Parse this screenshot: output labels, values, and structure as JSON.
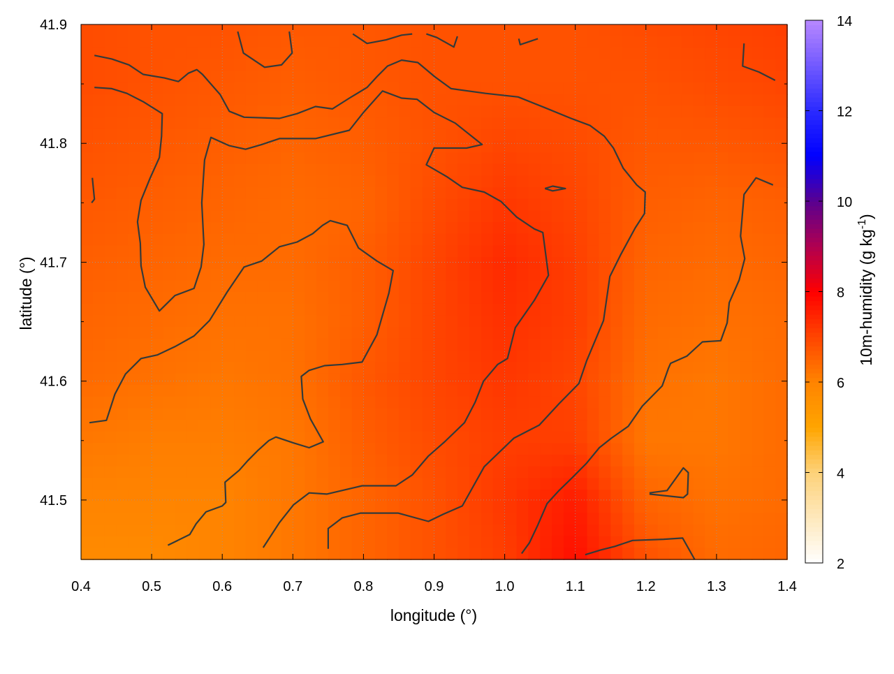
{
  "chart_data": {
    "type": "heatmap",
    "title": "",
    "xlabel": "longitude (°)",
    "ylabel": "latitude (°)",
    "xlim": [
      0.4,
      1.4
    ],
    "ylim": [
      41.45,
      41.9
    ],
    "xticks": [
      "0.4",
      "0.5",
      "0.6",
      "0.7",
      "0.8",
      "0.9",
      "1.0",
      "1.1",
      "1.2",
      "1.3",
      "1.4"
    ],
    "yticks": [
      "41.5",
      "41.6",
      "41.7",
      "41.8",
      "41.9"
    ],
    "grid": true,
    "colorbar": {
      "label_main": "10m-humidity (g kg",
      "label_sup": "-1",
      "label_end": ")",
      "range": [
        2,
        14
      ],
      "ticks": [
        "2",
        "4",
        "6",
        "8",
        "10",
        "12",
        "14"
      ],
      "colormap": [
        [
          2,
          "#ffffff"
        ],
        [
          4,
          "#fdd27a"
        ],
        [
          5,
          "#ffa500"
        ],
        [
          6,
          "#ff8400"
        ],
        [
          7,
          "#ff4500"
        ],
        [
          8,
          "#ff0000"
        ],
        [
          9,
          "#b00050"
        ],
        [
          10,
          "#5a0090"
        ],
        [
          11,
          "#0000ff"
        ],
        [
          12,
          "#2a2aff"
        ],
        [
          14,
          "#b888ff"
        ]
      ]
    },
    "grid_lon": [
      0.4,
      0.5,
      0.6,
      0.7,
      0.8,
      0.9,
      1.0,
      1.1,
      1.2,
      1.3,
      1.4
    ],
    "grid_lat": [
      41.9,
      41.85,
      41.8,
      41.75,
      41.7,
      41.65,
      41.6,
      41.55,
      41.5,
      41.45
    ],
    "values": [
      [
        6.9,
        6.8,
        6.8,
        6.7,
        6.7,
        6.8,
        6.8,
        6.8,
        6.9,
        7.0,
        7.1
      ],
      [
        6.9,
        6.8,
        6.7,
        6.6,
        6.7,
        6.8,
        6.8,
        6.8,
        6.8,
        6.9,
        7.0
      ],
      [
        6.8,
        6.7,
        6.6,
        6.5,
        6.6,
        6.8,
        7.0,
        6.9,
        6.7,
        6.7,
        6.8
      ],
      [
        6.7,
        6.6,
        6.5,
        6.4,
        6.5,
        6.9,
        7.2,
        7.0,
        6.6,
        6.5,
        6.6
      ],
      [
        6.6,
        6.5,
        6.4,
        6.4,
        6.6,
        7.0,
        7.4,
        7.1,
        6.5,
        6.4,
        6.5
      ],
      [
        6.5,
        6.4,
        6.3,
        6.3,
        6.6,
        7.0,
        7.3,
        7.1,
        6.4,
        6.3,
        6.4
      ],
      [
        6.4,
        6.3,
        6.2,
        6.3,
        6.7,
        7.0,
        7.2,
        7.0,
        6.3,
        6.2,
        6.4
      ],
      [
        6.2,
        6.1,
        6.1,
        6.2,
        6.6,
        6.9,
        7.1,
        7.1,
        6.2,
        6.2,
        6.4
      ],
      [
        6.0,
        6.0,
        6.0,
        6.2,
        6.5,
        6.8,
        7.2,
        7.6,
        6.5,
        6.3,
        6.4
      ],
      [
        5.8,
        5.8,
        6.0,
        6.2,
        6.5,
        6.8,
        7.1,
        7.8,
        6.8,
        6.4,
        6.5
      ]
    ],
    "contours": [
      [
        [
          0.419,
          41.874
        ],
        [
          0.4435,
          41.871
        ],
        [
          0.468,
          41.866
        ],
        [
          0.488,
          41.858
        ],
        [
          0.518,
          41.855
        ],
        [
          0.538,
          41.852
        ],
        [
          0.552,
          41.859
        ],
        [
          0.564,
          41.862
        ],
        [
          0.572,
          41.858
        ],
        [
          0.597,
          41.841
        ],
        [
          0.61,
          41.827
        ],
        [
          0.631,
          41.822
        ],
        [
          0.681,
          41.821
        ],
        [
          0.706,
          41.825
        ],
        [
          0.732,
          41.831
        ],
        [
          0.756,
          41.829
        ],
        [
          0.78,
          41.838
        ],
        [
          0.805,
          41.847
        ],
        [
          0.819,
          41.856
        ],
        [
          0.834,
          41.865
        ],
        [
          0.854,
          41.87
        ],
        [
          0.877,
          41.868
        ],
        [
          0.901,
          41.856
        ],
        [
          0.924,
          41.846
        ],
        [
          0.973,
          41.842
        ],
        [
          1.019,
          41.839
        ],
        [
          1.057,
          41.83
        ],
        [
          1.094,
          41.821
        ],
        [
          1.121,
          41.815
        ],
        [
          1.141,
          41.806
        ],
        [
          1.154,
          41.796
        ],
        [
          1.168,
          41.779
        ],
        [
          1.187,
          41.765
        ],
        [
          1.199,
          41.759
        ],
        [
          1.198,
          41.741
        ],
        [
          1.185,
          41.729
        ],
        [
          1.164,
          41.706
        ],
        [
          1.149,
          41.688
        ],
        [
          1.14,
          41.651
        ],
        [
          1.116,
          41.617
        ],
        [
          1.105,
          41.598
        ],
        [
          1.077,
          41.581
        ],
        [
          1.049,
          41.563
        ],
        [
          1.013,
          41.552
        ],
        [
          0.971,
          41.528
        ],
        [
          0.94,
          41.495
        ],
        [
          0.913,
          41.488
        ],
        [
          0.892,
          41.482
        ],
        [
          0.849,
          41.489
        ],
        [
          0.796,
          41.489
        ],
        [
          0.77,
          41.485
        ],
        [
          0.75,
          41.476
        ],
        [
          0.75,
          41.459
        ]
      ],
      [
        [
          0.419,
          41.847
        ],
        [
          0.4435,
          41.846
        ],
        [
          0.465,
          41.842
        ],
        [
          0.488,
          41.835
        ],
        [
          0.515,
          41.825
        ],
        [
          0.514,
          41.806
        ],
        [
          0.511,
          41.788
        ],
        [
          0.498,
          41.771
        ],
        [
          0.485,
          41.752
        ],
        [
          0.48,
          41.734
        ],
        [
          0.484,
          41.716
        ],
        [
          0.485,
          41.697
        ],
        [
          0.491,
          41.679
        ],
        [
          0.511,
          41.659
        ],
        [
          0.533,
          41.672
        ],
        [
          0.56,
          41.678
        ],
        [
          0.57,
          41.696
        ],
        [
          0.574,
          41.715
        ],
        [
          0.571,
          41.75
        ],
        [
          0.575,
          41.786
        ],
        [
          0.584,
          41.805
        ],
        [
          0.61,
          41.798
        ],
        [
          0.633,
          41.795
        ],
        [
          0.656,
          41.799
        ],
        [
          0.681,
          41.804
        ],
        [
          0.732,
          41.804
        ],
        [
          0.78,
          41.811
        ],
        [
          0.8,
          41.826
        ],
        [
          0.827,
          41.844
        ],
        [
          0.854,
          41.838
        ],
        [
          0.876,
          41.837
        ],
        [
          0.9,
          41.826
        ],
        [
          0.93,
          41.817
        ],
        [
          0.968,
          41.799
        ],
        [
          0.946,
          41.796
        ],
        [
          0.9,
          41.796
        ],
        [
          0.889,
          41.782
        ],
        [
          0.918,
          41.772
        ],
        [
          0.94,
          41.763
        ],
        [
          0.971,
          41.759
        ],
        [
          0.995,
          41.751
        ],
        [
          1.017,
          41.738
        ],
        [
          1.042,
          41.728
        ],
        [
          1.054,
          41.725
        ],
        [
          1.062,
          41.689
        ],
        [
          1.042,
          41.668
        ],
        [
          1.015,
          41.645
        ],
        [
          1.004,
          41.619
        ],
        [
          0.99,
          41.614
        ],
        [
          0.97,
          41.6
        ],
        [
          0.958,
          41.582
        ],
        [
          0.943,
          41.565
        ],
        [
          0.915,
          41.549
        ],
        [
          0.892,
          41.537
        ],
        [
          0.869,
          41.521
        ],
        [
          0.846,
          41.512
        ],
        [
          0.798,
          41.512
        ],
        [
          0.748,
          41.505
        ],
        [
          0.723,
          41.506
        ],
        [
          0.701,
          41.496
        ],
        [
          0.681,
          41.481
        ],
        [
          0.658,
          41.46
        ]
      ],
      [
        [
          0.412,
          41.565
        ],
        [
          0.436,
          41.567
        ],
        [
          0.448,
          41.589
        ],
        [
          0.463,
          41.606
        ],
        [
          0.485,
          41.619
        ],
        [
          0.508,
          41.622
        ],
        [
          0.533,
          41.629
        ],
        [
          0.56,
          41.638
        ],
        [
          0.582,
          41.651
        ],
        [
          0.607,
          41.675
        ],
        [
          0.631,
          41.696
        ],
        [
          0.656,
          41.701
        ],
        [
          0.681,
          41.713
        ],
        [
          0.706,
          41.717
        ],
        [
          0.728,
          41.724
        ],
        [
          0.742,
          41.731
        ],
        [
          0.753,
          41.735
        ],
        [
          0.777,
          41.731
        ],
        [
          0.793,
          41.712
        ],
        [
          0.819,
          41.701
        ],
        [
          0.842,
          41.693
        ],
        [
          0.836,
          41.674
        ],
        [
          0.819,
          41.639
        ],
        [
          0.798,
          41.616
        ],
        [
          0.77,
          41.614
        ],
        [
          0.745,
          41.613
        ],
        [
          0.723,
          41.609
        ],
        [
          0.712,
          41.604
        ],
        [
          0.714,
          41.585
        ],
        [
          0.725,
          41.568
        ],
        [
          0.743,
          41.549
        ],
        [
          0.723,
          41.544
        ],
        [
          0.701,
          41.548
        ],
        [
          0.676,
          41.553
        ],
        [
          0.666,
          41.55
        ],
        [
          0.651,
          41.542
        ],
        [
          0.636,
          41.533
        ],
        [
          0.624,
          41.525
        ],
        [
          0.604,
          41.515
        ],
        [
          0.605,
          41.498
        ],
        [
          0.6,
          41.495
        ],
        [
          0.577,
          41.49
        ],
        [
          0.563,
          41.48
        ],
        [
          0.554,
          41.471
        ],
        [
          0.523,
          41.462
        ]
      ],
      [
        [
          1.38,
          41.765
        ],
        [
          1.356,
          41.771
        ],
        [
          1.339,
          41.757
        ],
        [
          1.334,
          41.722
        ],
        [
          1.34,
          41.703
        ],
        [
          1.332,
          41.685
        ],
        [
          1.318,
          41.666
        ],
        [
          1.315,
          41.649
        ],
        [
          1.306,
          41.634
        ],
        [
          1.28,
          41.633
        ],
        [
          1.258,
          41.621
        ],
        [
          1.235,
          41.615
        ],
        [
          1.232,
          41.611
        ],
        [
          1.223,
          41.596
        ],
        [
          1.195,
          41.579
        ],
        [
          1.175,
          41.562
        ],
        [
          1.151,
          41.552
        ],
        [
          1.134,
          41.544
        ],
        [
          1.116,
          41.531
        ],
        [
          1.096,
          41.519
        ],
        [
          1.077,
          41.508
        ],
        [
          1.06,
          41.497
        ],
        [
          1.047,
          41.479
        ],
        [
          1.035,
          41.464
        ],
        [
          1.024,
          41.455
        ]
      ],
      [
        [
          1.339,
          41.884
        ],
        [
          1.337,
          41.865
        ],
        [
          1.36,
          41.86
        ],
        [
          1.383,
          41.853
        ]
      ],
      [
        [
          1.114,
          41.454
        ],
        [
          1.136,
          41.458
        ],
        [
          1.156,
          41.461
        ],
        [
          1.181,
          41.466
        ],
        [
          1.225,
          41.467
        ],
        [
          1.252,
          41.468
        ],
        [
          1.269,
          41.45
        ]
      ],
      [
        [
          1.205,
          41.506
        ],
        [
          1.23,
          41.508
        ],
        [
          1.253,
          41.527
        ],
        [
          1.26,
          41.523
        ],
        [
          1.259,
          41.505
        ],
        [
          1.253,
          41.502
        ],
        [
          1.205,
          41.505
        ]
      ],
      [
        [
          0.622,
          41.894
        ],
        [
          0.63,
          41.876
        ],
        [
          0.66,
          41.864
        ],
        [
          0.684,
          41.866
        ],
        [
          0.699,
          41.876
        ],
        [
          0.695,
          41.894
        ]
      ],
      [
        [
          0.785,
          41.892
        ],
        [
          0.805,
          41.884
        ],
        [
          0.832,
          41.887
        ],
        [
          0.854,
          41.891
        ],
        [
          0.869,
          41.892
        ]
      ],
      [
        [
          0.889,
          41.892
        ],
        [
          0.904,
          41.889
        ],
        [
          0.928,
          41.881
        ],
        [
          0.933,
          41.89
        ]
      ],
      [
        [
          1.02,
          41.888
        ],
        [
          1.022,
          41.883
        ],
        [
          1.047,
          41.888
        ]
      ],
      [
        [
          1.057,
          41.762
        ],
        [
          1.068,
          41.764
        ],
        [
          1.086,
          41.762
        ],
        [
          1.068,
          41.76
        ],
        [
          1.057,
          41.762
        ]
      ],
      [
        [
          0.416,
          41.771
        ],
        [
          0.419,
          41.753
        ],
        [
          0.415,
          41.75
        ]
      ]
    ],
    "contour_color": "#333a3a"
  }
}
